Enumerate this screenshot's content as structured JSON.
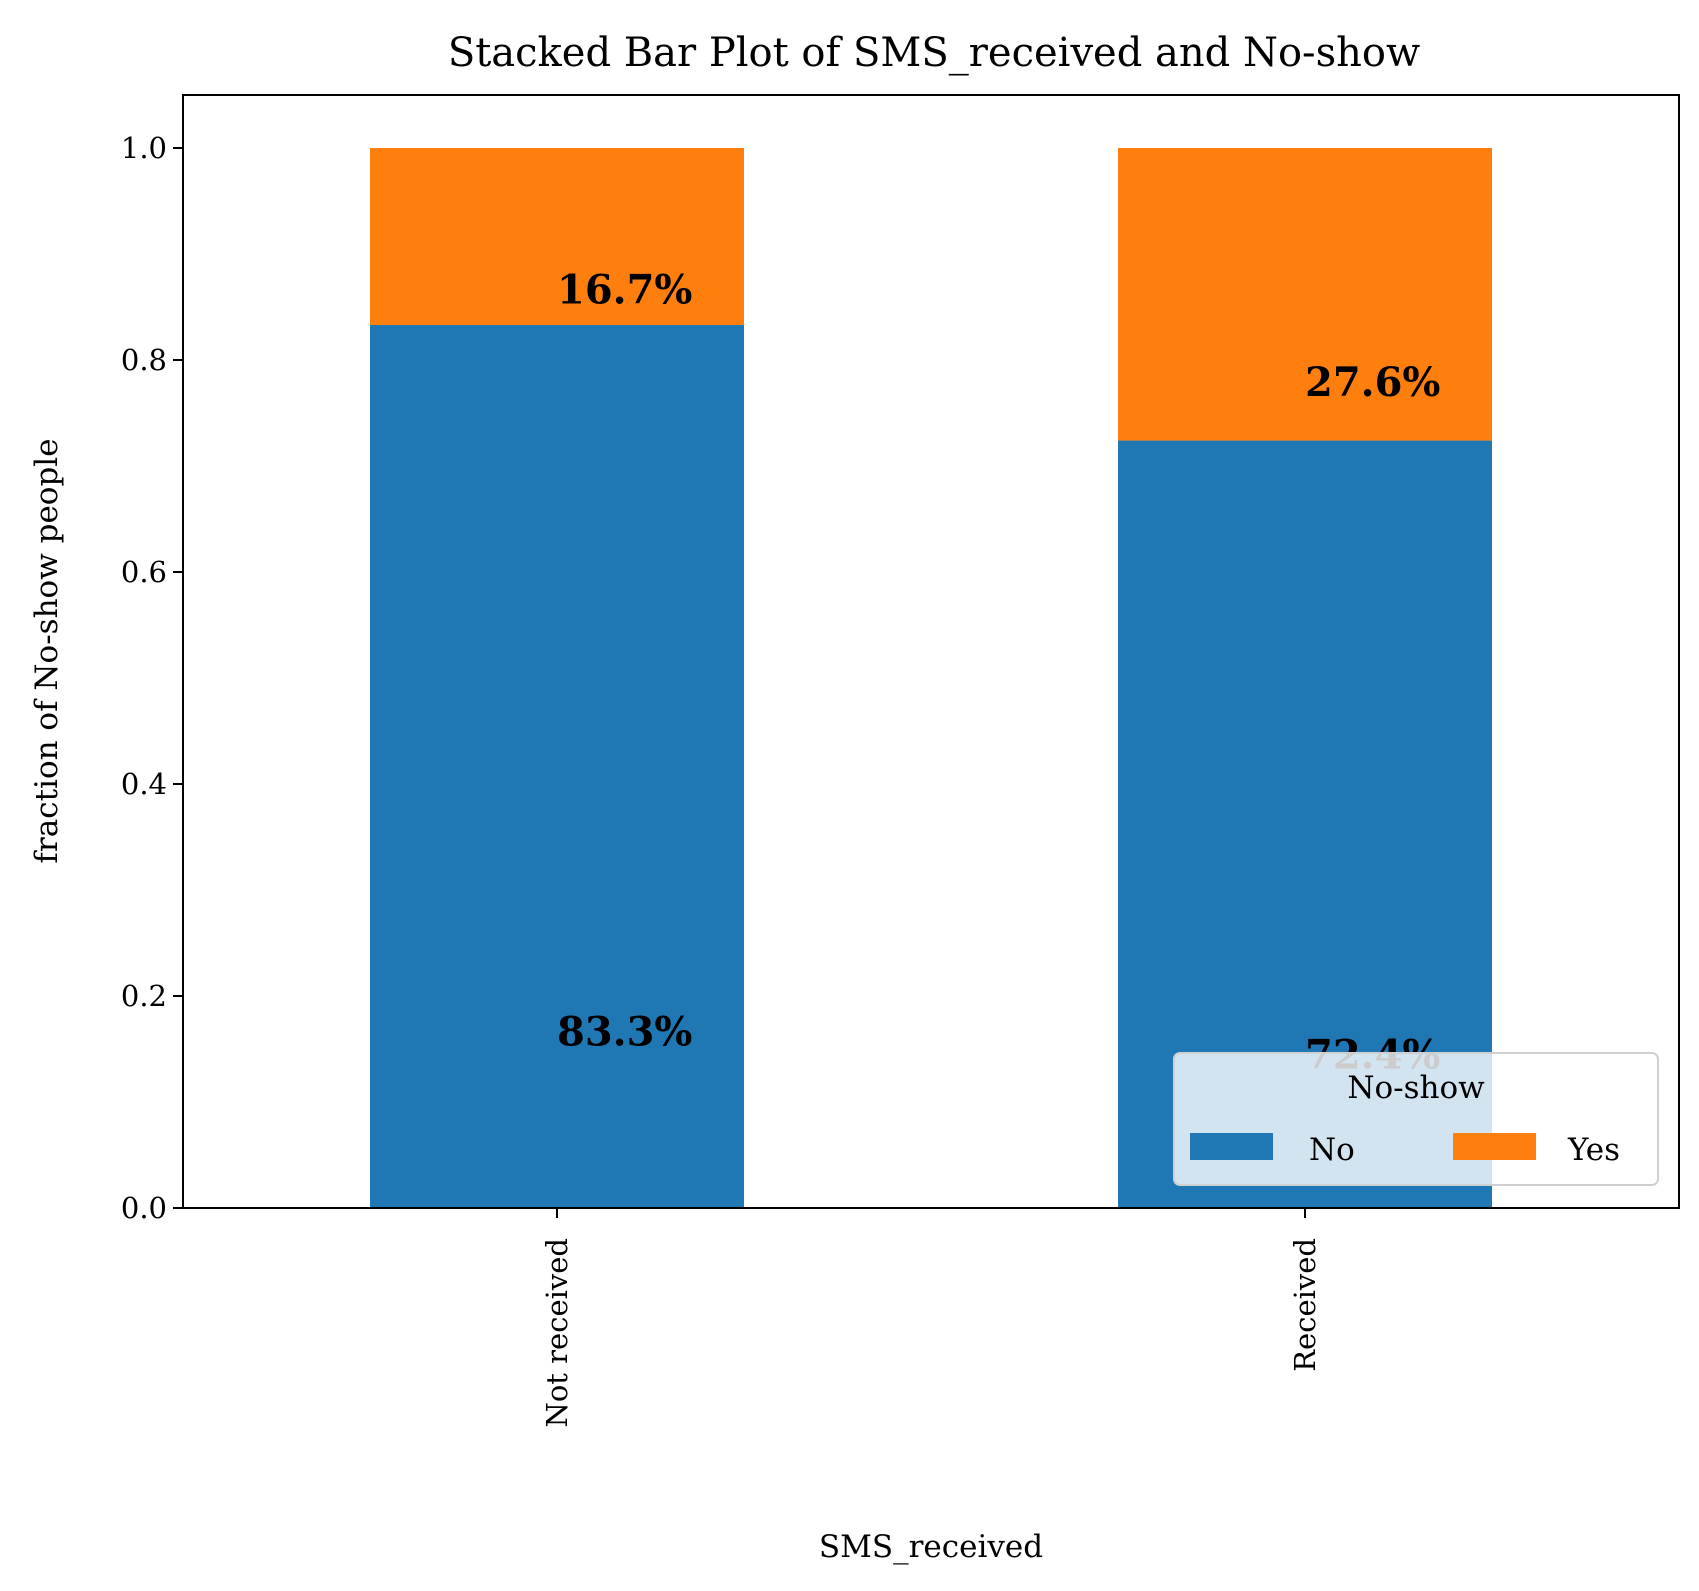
{
  "chart_data": {
    "type": "bar",
    "stacked": true,
    "title": "Stacked Bar Plot of SMS_received and No-show",
    "xlabel": "SMS_received",
    "ylabel": "fraction of No-show people",
    "categories": [
      "Not received",
      "Received"
    ],
    "ylim": [
      0,
      1.05
    ],
    "yticks": [
      "0.0",
      "0.2",
      "0.4",
      "0.6",
      "0.8",
      "1.0"
    ],
    "ytick_values": [
      0,
      0.2,
      0.4,
      0.6,
      0.8,
      1.0
    ],
    "series": [
      {
        "name": "No",
        "values": [
          0.833,
          0.724
        ],
        "labels": [
          "83.3%",
          "72.4%"
        ],
        "color": "#1f77b4"
      },
      {
        "name": "Yes",
        "values": [
          0.167,
          0.276
        ],
        "labels": [
          "16.7%",
          "27.6%"
        ],
        "color": "#ff7f0e"
      }
    ],
    "legend": {
      "title": "No-show",
      "placement": "lower-right",
      "columns": 2
    },
    "grid": false
  }
}
